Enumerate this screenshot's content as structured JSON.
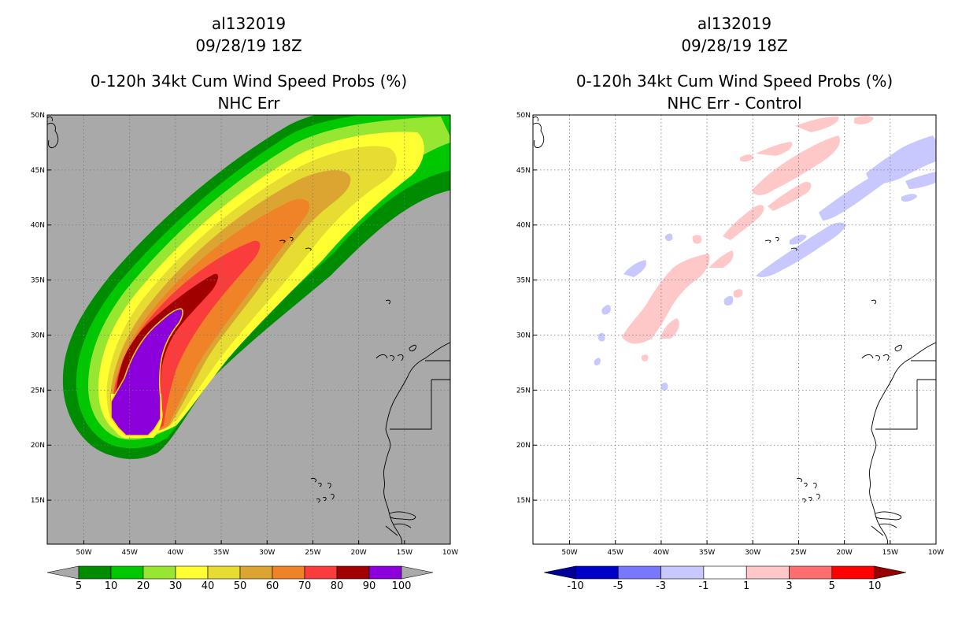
{
  "left_panel": {
    "storm_id": "al132019",
    "datetime": "09/28/19 18Z",
    "product": "0-120h 34kt Cum Wind Speed Probs (%)",
    "subtitle": "NHC Err",
    "background_color": "#a9a9a9",
    "colorbar": {
      "labels": [
        "5",
        "10",
        "20",
        "30",
        "40",
        "50",
        "60",
        "70",
        "80",
        "90",
        "100"
      ],
      "colors": [
        "#008c00",
        "#00c800",
        "#96e632",
        "#ffff32",
        "#e6dc32",
        "#dca532",
        "#f08228",
        "#fa3c3c",
        "#a00000",
        "#8c00dc"
      ],
      "under_color": "#a9a9a9",
      "over_color": "#a9a9a9"
    }
  },
  "right_panel": {
    "storm_id": "al132019",
    "datetime": "09/28/19 18Z",
    "product": "0-120h 34kt Cum Wind Speed Probs (%)",
    "subtitle": "NHC Err - Control",
    "background_color": "#ffffff",
    "colorbar": {
      "labels": [
        "-10",
        "-5",
        "-3",
        "-1",
        "1",
        "3",
        "5",
        "10"
      ],
      "colors": [
        "#0000c8",
        "#7878ff",
        "#c8c8ff",
        "#ffffff",
        "#ffc8c8",
        "#ff6e6e",
        "#ff0000"
      ],
      "under_color": "#000096",
      "over_color": "#960000"
    }
  },
  "axes": {
    "lat_labels": [
      "50N",
      "45N",
      "40N",
      "35N",
      "30N",
      "25N",
      "20N",
      "15N"
    ],
    "lat_values": [
      50,
      45,
      40,
      35,
      30,
      25,
      20,
      15
    ],
    "lon_labels": [
      "50W",
      "45W",
      "40W",
      "35W",
      "30W",
      "25W",
      "20W",
      "15W",
      "10W"
    ],
    "lon_values": [
      -50,
      -45,
      -40,
      -35,
      -30,
      -25,
      -20,
      -15,
      -10
    ],
    "lon_range": [
      -54,
      -10
    ],
    "lat_range": [
      11,
      50
    ]
  }
}
